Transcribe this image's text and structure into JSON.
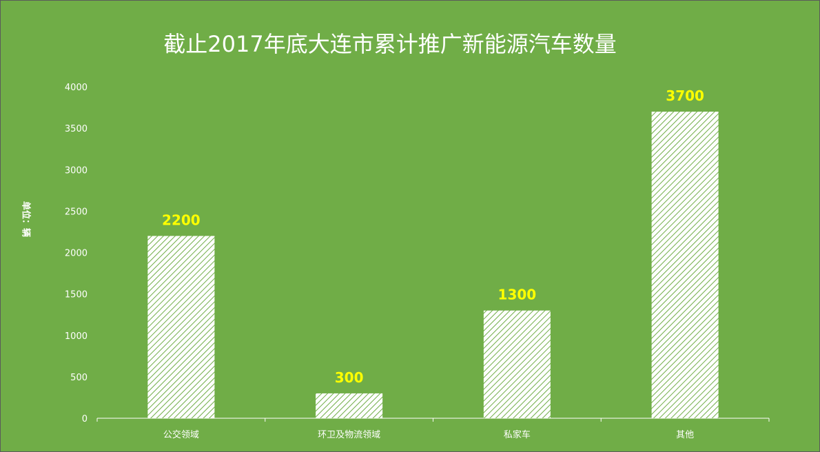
{
  "chart_data": {
    "type": "bar",
    "title": "截止2017年底大连市累计推广新能源汽车数量",
    "ylabel": "单位：辆",
    "xlabel": "",
    "categories": [
      "公交领域",
      "环卫及物流领域",
      "私家车",
      "其他"
    ],
    "values": [
      2200,
      300,
      1300,
      3700
    ],
    "ylim": [
      0,
      4000
    ],
    "yticks": [
      0,
      500,
      1000,
      1500,
      2000,
      2500,
      3000,
      3500,
      4000
    ],
    "grid": false,
    "legend": "none",
    "data_labels": true
  },
  "colors": {
    "background": "#70AD47",
    "bar_fill": "#ffffff",
    "hatch": "#70AD47",
    "axis": "#ffffff",
    "data_label": "#FFFF00",
    "text": "#ffffff"
  }
}
